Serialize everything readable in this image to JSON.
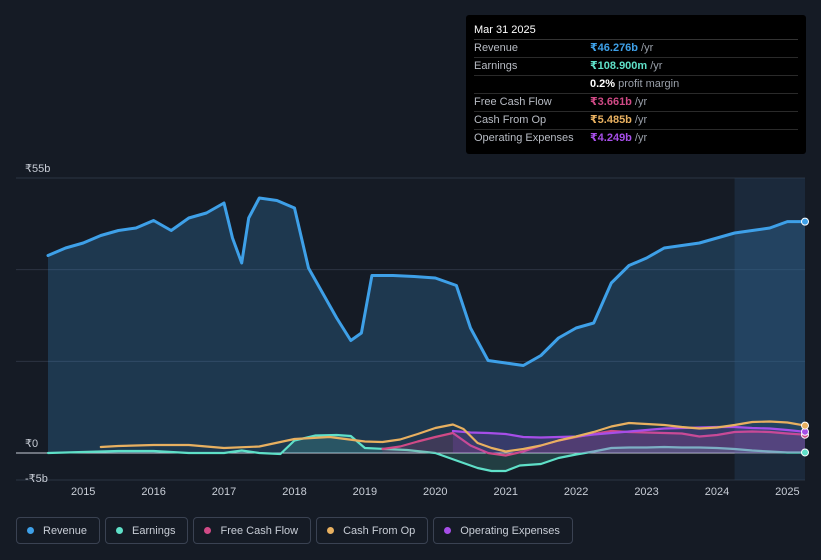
{
  "chart_data": {
    "type": "area",
    "x_ticks": [
      "2015",
      "2016",
      "2017",
      "2018",
      "2019",
      "2020",
      "2021",
      "2022",
      "2023",
      "2024",
      "2025"
    ],
    "y_ticks": [
      {
        "label": "₹55b",
        "value": 55
      },
      {
        "label": "₹0",
        "value": 0
      },
      {
        "label": "-₹5b",
        "value": -5
      }
    ],
    "ylim": [
      -7,
      55
    ],
    "xlim": [
      2014.5,
      2025.25
    ],
    "series": [
      {
        "name": "Revenue",
        "key": "revenue",
        "color": "#3ea0e8",
        "area": true,
        "points": [
          [
            2014.5,
            39.5
          ],
          [
            2014.75,
            41
          ],
          [
            2015.0,
            42
          ],
          [
            2015.25,
            43.5
          ],
          [
            2015.5,
            44.5
          ],
          [
            2015.75,
            45
          ],
          [
            2016.0,
            46.5
          ],
          [
            2016.25,
            44.5
          ],
          [
            2016.5,
            47
          ],
          [
            2016.75,
            48
          ],
          [
            2017.0,
            50
          ],
          [
            2017.12,
            43
          ],
          [
            2017.25,
            38
          ],
          [
            2017.35,
            47
          ],
          [
            2017.5,
            51
          ],
          [
            2017.75,
            50.5
          ],
          [
            2018.0,
            49
          ],
          [
            2018.2,
            37
          ],
          [
            2018.4,
            32
          ],
          [
            2018.6,
            27
          ],
          [
            2018.8,
            22.5
          ],
          [
            2018.95,
            24
          ],
          [
            2019.1,
            35.5
          ],
          [
            2019.4,
            35.5
          ],
          [
            2019.7,
            35.3
          ],
          [
            2020.0,
            35
          ],
          [
            2020.3,
            33.5
          ],
          [
            2020.5,
            25
          ],
          [
            2020.75,
            18.5
          ],
          [
            2021.0,
            18
          ],
          [
            2021.25,
            17.5
          ],
          [
            2021.5,
            19.5
          ],
          [
            2021.75,
            23
          ],
          [
            2022.0,
            25
          ],
          [
            2022.25,
            26
          ],
          [
            2022.5,
            34
          ],
          [
            2022.75,
            37.5
          ],
          [
            2023.0,
            39
          ],
          [
            2023.25,
            41
          ],
          [
            2023.5,
            41.5
          ],
          [
            2023.75,
            42
          ],
          [
            2024.0,
            43
          ],
          [
            2024.25,
            44
          ],
          [
            2024.5,
            44.5
          ],
          [
            2024.75,
            45
          ],
          [
            2025.0,
            46.276
          ],
          [
            2025.25,
            46.276
          ]
        ]
      },
      {
        "name": "Earnings",
        "key": "earnings",
        "color": "#5fe0c8",
        "area": true,
        "points": [
          [
            2014.5,
            0
          ],
          [
            2015.0,
            0.2
          ],
          [
            2015.5,
            0.4
          ],
          [
            2016.0,
            0.4
          ],
          [
            2016.5,
            0
          ],
          [
            2017.0,
            0
          ],
          [
            2017.25,
            0.5
          ],
          [
            2017.5,
            0
          ],
          [
            2017.8,
            -0.2
          ],
          [
            2018.0,
            2.5
          ],
          [
            2018.3,
            3.5
          ],
          [
            2018.6,
            3.6
          ],
          [
            2018.8,
            3.4
          ],
          [
            2019.0,
            1
          ],
          [
            2019.3,
            0.8
          ],
          [
            2019.6,
            0.6
          ],
          [
            2020.0,
            0
          ],
          [
            2020.3,
            -1.5
          ],
          [
            2020.6,
            -3
          ],
          [
            2020.8,
            -3.6
          ],
          [
            2021.0,
            -3.6
          ],
          [
            2021.2,
            -2.5
          ],
          [
            2021.5,
            -2.2
          ],
          [
            2021.75,
            -1
          ],
          [
            2022.0,
            -0.3
          ],
          [
            2022.25,
            0.3
          ],
          [
            2022.5,
            1
          ],
          [
            2022.75,
            1.1
          ],
          [
            2023.0,
            1.1
          ],
          [
            2023.25,
            1.2
          ],
          [
            2023.5,
            1.1
          ],
          [
            2023.75,
            1.1
          ],
          [
            2024.0,
            1
          ],
          [
            2024.25,
            0.8
          ],
          [
            2024.5,
            0.5
          ],
          [
            2024.75,
            0.3
          ],
          [
            2025.0,
            0.109
          ],
          [
            2025.25,
            0.109
          ]
        ]
      },
      {
        "name": "Free Cash Flow",
        "key": "fcf",
        "color": "#d04a86",
        "area": true,
        "points": [
          [
            2019.25,
            0.8
          ],
          [
            2019.5,
            1.3
          ],
          [
            2019.75,
            2.3
          ],
          [
            2020.0,
            3.2
          ],
          [
            2020.25,
            4
          ],
          [
            2020.5,
            1.5
          ],
          [
            2020.75,
            0
          ],
          [
            2021.0,
            -0.5
          ],
          [
            2021.25,
            0.3
          ],
          [
            2021.5,
            1.5
          ],
          [
            2021.75,
            2.5
          ],
          [
            2022.0,
            3.2
          ],
          [
            2022.25,
            3.8
          ],
          [
            2022.5,
            4.4
          ],
          [
            2022.75,
            4.2
          ],
          [
            2023.0,
            4.1
          ],
          [
            2023.25,
            4
          ],
          [
            2023.5,
            3.9
          ],
          [
            2023.75,
            3.3
          ],
          [
            2024.0,
            3.6
          ],
          [
            2024.25,
            4.2
          ],
          [
            2024.5,
            4.3
          ],
          [
            2024.75,
            4.2
          ],
          [
            2025.0,
            3.9
          ],
          [
            2025.25,
            3.661
          ]
        ]
      },
      {
        "name": "Cash From Op",
        "key": "cfo",
        "color": "#e8b060",
        "area": false,
        "points": [
          [
            2015.25,
            1.2
          ],
          [
            2015.5,
            1.4
          ],
          [
            2016.0,
            1.6
          ],
          [
            2016.5,
            1.6
          ],
          [
            2017.0,
            1
          ],
          [
            2017.5,
            1.3
          ],
          [
            2018.0,
            2.8
          ],
          [
            2018.5,
            3.2
          ],
          [
            2019.0,
            2.3
          ],
          [
            2019.25,
            2.2
          ],
          [
            2019.5,
            2.7
          ],
          [
            2019.75,
            3.8
          ],
          [
            2020.0,
            5
          ],
          [
            2020.25,
            5.7
          ],
          [
            2020.4,
            4.8
          ],
          [
            2020.6,
            2
          ],
          [
            2020.8,
            1
          ],
          [
            2021.0,
            0.3
          ],
          [
            2021.25,
            0.8
          ],
          [
            2021.5,
            1.5
          ],
          [
            2021.75,
            2.5
          ],
          [
            2022.0,
            3.3
          ],
          [
            2022.25,
            4.2
          ],
          [
            2022.5,
            5.3
          ],
          [
            2022.75,
            6
          ],
          [
            2023.0,
            5.8
          ],
          [
            2023.25,
            5.6
          ],
          [
            2023.5,
            5.2
          ],
          [
            2023.75,
            4.9
          ],
          [
            2024.0,
            5.1
          ],
          [
            2024.25,
            5.6
          ],
          [
            2024.5,
            6.2
          ],
          [
            2024.75,
            6.3
          ],
          [
            2025.0,
            6.1
          ],
          [
            2025.25,
            5.485
          ]
        ]
      },
      {
        "name": "Operating Expenses",
        "key": "opex",
        "color": "#a64ee8",
        "area": true,
        "points": [
          [
            2020.25,
            4.4
          ],
          [
            2020.5,
            4.1
          ],
          [
            2020.75,
            4
          ],
          [
            2021.0,
            3.8
          ],
          [
            2021.25,
            3.2
          ],
          [
            2021.5,
            3.1
          ],
          [
            2021.75,
            3.2
          ],
          [
            2022.0,
            3.3
          ],
          [
            2022.25,
            3.7
          ],
          [
            2022.5,
            4
          ],
          [
            2022.75,
            4.3
          ],
          [
            2023.0,
            4.6
          ],
          [
            2023.25,
            4.9
          ],
          [
            2023.5,
            5
          ],
          [
            2023.75,
            5.1
          ],
          [
            2024.0,
            5.2
          ],
          [
            2024.25,
            5.2
          ],
          [
            2024.5,
            5
          ],
          [
            2024.75,
            4.9
          ],
          [
            2025.0,
            4.6
          ],
          [
            2025.25,
            4.249
          ]
        ]
      }
    ],
    "highlight_start": 2024.25
  },
  "tooltip": {
    "date": "Mar 31 2025",
    "rows": [
      {
        "label": "Revenue",
        "value": "₹46.276b",
        "unit": "/yr",
        "color": "#3ea0e8"
      },
      {
        "label": "Earnings",
        "value": "₹108.900m",
        "unit": "/yr",
        "color": "#5fe0c8"
      },
      {
        "label": "",
        "value": "0.2%",
        "unit": "profit margin",
        "color": "#ffffff"
      },
      {
        "label": "Free Cash Flow",
        "value": "₹3.661b",
        "unit": "/yr",
        "color": "#d04a86"
      },
      {
        "label": "Cash From Op",
        "value": "₹5.485b",
        "unit": "/yr",
        "color": "#e8b060"
      },
      {
        "label": "Operating Expenses",
        "value": "₹4.249b",
        "unit": "/yr",
        "color": "#a64ee8"
      }
    ]
  },
  "legend": [
    {
      "label": "Revenue",
      "color": "#3ea0e8"
    },
    {
      "label": "Earnings",
      "color": "#5fe0c8"
    },
    {
      "label": "Free Cash Flow",
      "color": "#d04a86"
    },
    {
      "label": "Cash From Op",
      "color": "#e8b060"
    },
    {
      "label": "Operating Expenses",
      "color": "#a64ee8"
    }
  ]
}
